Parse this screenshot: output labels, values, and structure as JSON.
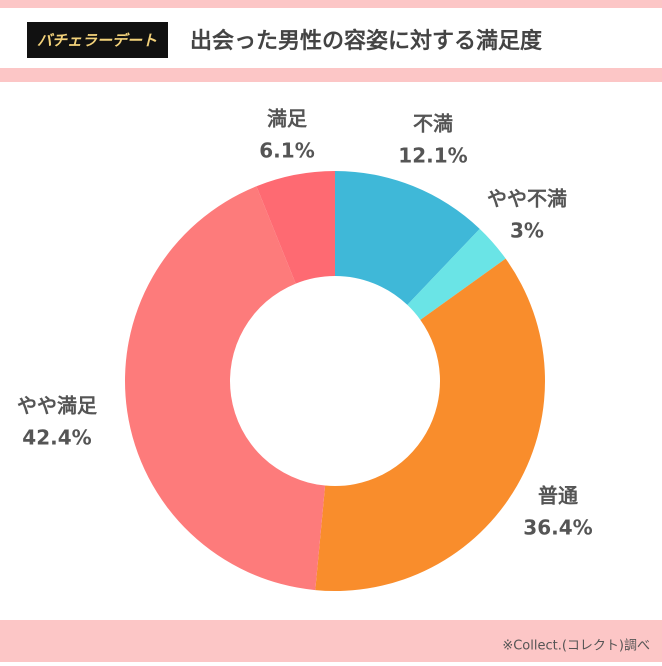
{
  "header": {
    "logo": "バチェラーデート"
  },
  "chart_data": {
    "type": "donut",
    "title": "出会った男性の容姿に対する満足度",
    "categories": [
      "不満",
      "やや不満",
      "普通",
      "やや満足",
      "満足"
    ],
    "values": [
      12.1,
      3,
      36.4,
      42.4,
      6.1
    ],
    "value_labels": [
      "12.1%",
      "3%",
      "36.4%",
      "42.4%",
      "6.1%"
    ],
    "colors": [
      "#3fb8d8",
      "#6ae4e6",
      "#f98d2c",
      "#fd7b7b",
      "#fe6a72"
    ]
  },
  "footer": {
    "source": "※Collect.(コレクト)調べ"
  }
}
